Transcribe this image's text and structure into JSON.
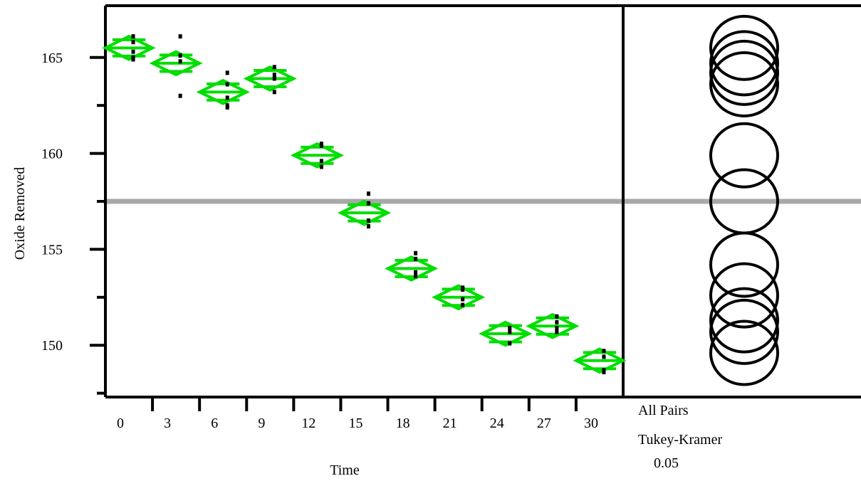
{
  "chart_data": {
    "type": "means-diamonds",
    "xlabel": "Time",
    "ylabel": "Oxide Removed",
    "categories": [
      "0",
      "3",
      "6",
      "9",
      "12",
      "15",
      "18",
      "21",
      "24",
      "27",
      "30"
    ],
    "ylim": [
      147.3,
      167.7
    ],
    "yticks_major": [
      150,
      155,
      160,
      165
    ],
    "yticks_minor": [
      147.5,
      152.5,
      157.5,
      162.5
    ],
    "grand_mean": 157.5,
    "groups": [
      {
        "label": "0",
        "mean": 165.5,
        "ci": [
          164.9,
          166.1
        ],
        "obs": [
          166.1,
          165.8,
          165.3,
          165.0,
          164.9
        ]
      },
      {
        "label": "3",
        "mean": 164.7,
        "ci": [
          164.1,
          165.3
        ],
        "obs": [
          166.1,
          165.1,
          164.8,
          163.0
        ]
      },
      {
        "label": "6",
        "mean": 163.2,
        "ci": [
          162.6,
          163.8
        ],
        "obs": [
          164.2,
          163.6,
          162.9,
          162.5,
          162.4
        ]
      },
      {
        "label": "9",
        "mean": 163.9,
        "ci": [
          163.3,
          164.5
        ],
        "obs": [
          164.5,
          164.1,
          163.9,
          163.2
        ]
      },
      {
        "label": "12",
        "mean": 159.9,
        "ci": [
          159.3,
          160.5
        ],
        "obs": [
          160.5,
          160.4,
          159.6,
          159.3
        ]
      },
      {
        "label": "15",
        "mean": 156.9,
        "ci": [
          156.3,
          157.5
        ],
        "obs": [
          157.9,
          157.4,
          156.5,
          156.2
        ]
      },
      {
        "label": "18",
        "mean": 154.0,
        "ci": [
          153.4,
          154.6
        ],
        "obs": [
          154.8,
          154.5,
          153.8,
          153.6
        ]
      },
      {
        "label": "21",
        "mean": 152.5,
        "ci": [
          151.9,
          153.1
        ],
        "obs": [
          153.0,
          152.9,
          152.4,
          152.1
        ]
      },
      {
        "label": "24",
        "mean": 150.6,
        "ci": [
          150.0,
          151.2
        ],
        "obs": [
          150.9,
          150.7,
          150.1
        ]
      },
      {
        "label": "27",
        "mean": 151.0,
        "ci": [
          150.4,
          151.6
        ],
        "obs": [
          151.5,
          151.2,
          150.9,
          150.7
        ]
      },
      {
        "label": "30",
        "mean": 149.2,
        "ci": [
          148.6,
          149.8
        ],
        "obs": [
          149.7,
          149.4,
          148.7,
          148.6
        ]
      }
    ],
    "comparison_circles": {
      "labels": [
        "All Pairs",
        "Tukey-Kramer",
        "0.05"
      ],
      "centers": [
        165.5,
        164.7,
        164.2,
        163.6,
        159.9,
        157.5,
        154.2,
        152.6,
        151.3,
        150.7,
        149.6
      ]
    },
    "colors": {
      "diamond": "#00dd00",
      "points": "#000000",
      "grand_mean_line": "#a8a8a8",
      "axes": "#000000"
    }
  }
}
